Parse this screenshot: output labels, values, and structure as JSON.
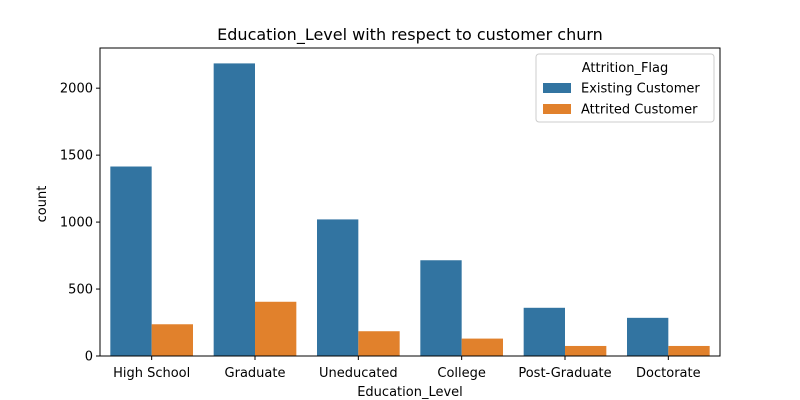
{
  "chart_data": {
    "type": "bar",
    "title": "Education_Level with respect to customer churn",
    "xlabel": "Education_Level",
    "ylabel": "count",
    "categories": [
      "High School",
      "Graduate",
      "Uneducated",
      "College",
      "Post-Graduate",
      "Doctorate"
    ],
    "series": [
      {
        "name": "Existing Customer",
        "color": "#3274a1",
        "values": [
          1415,
          2185,
          1020,
          715,
          360,
          285
        ]
      },
      {
        "name": "Attrited Customer",
        "color": "#e1812c",
        "values": [
          237,
          405,
          185,
          130,
          75,
          75
        ]
      }
    ],
    "ylim": [
      0,
      2300
    ],
    "yticks": [
      0,
      500,
      1000,
      1500,
      2000
    ],
    "legend": {
      "title": "Attrition_Flag",
      "placement": "top-right"
    },
    "grid": false
  }
}
